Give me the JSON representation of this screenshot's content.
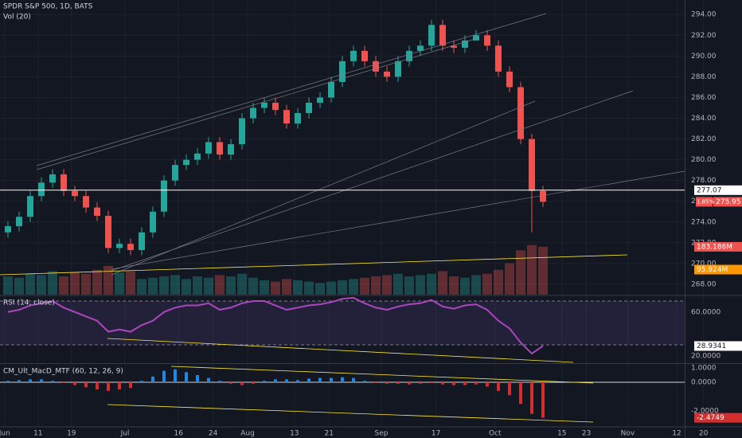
{
  "chart_data": [
    {
      "type": "candlestick",
      "title": "SPDR S&P 500, 1D, BATS",
      "subtitle": "Vol (20)",
      "open": [
        273.0,
        273.6,
        274.5,
        276.5,
        277.8,
        278.6,
        277.0,
        276.5,
        275.4,
        274.6,
        271.5,
        271.9,
        271.3,
        273.0,
        275.0,
        278.0,
        279.5,
        280.0,
        280.6,
        281.7,
        280.5,
        281.5,
        284.0,
        285.0,
        285.5,
        284.8,
        283.5,
        284.5,
        285.5,
        286.0,
        287.5,
        289.5,
        290.5,
        289.5,
        288.5,
        288.0,
        289.5,
        290.5,
        291.0,
        293.0,
        291.0,
        290.8,
        291.5,
        292.0,
        291.0,
        288.5,
        287.0,
        282.0,
        277.0
      ],
      "high": [
        274.1,
        275.0,
        277.0,
        278.3,
        279.1,
        279.1,
        277.5,
        277.0,
        275.9,
        275.1,
        272.4,
        272.4,
        273.5,
        275.5,
        278.5,
        280.0,
        280.5,
        281.1,
        282.2,
        282.2,
        282.0,
        284.5,
        285.5,
        286.0,
        286.0,
        285.3,
        285.0,
        286.0,
        286.5,
        288.0,
        290.0,
        291.0,
        291.0,
        290.0,
        289.0,
        290.0,
        291.0,
        291.5,
        293.5,
        293.5,
        291.5,
        292.0,
        292.5,
        292.5,
        291.5,
        289.0,
        287.5,
        282.5,
        277.5
      ],
      "low": [
        272.5,
        273.1,
        274.0,
        276.0,
        277.3,
        276.5,
        276.0,
        274.9,
        274.1,
        271.0,
        271.0,
        270.8,
        270.8,
        272.5,
        274.5,
        277.5,
        279.0,
        279.5,
        280.1,
        280.0,
        280.0,
        281.0,
        283.5,
        284.5,
        284.3,
        283.0,
        283.0,
        284.0,
        285.0,
        285.5,
        287.0,
        289.0,
        289.0,
        288.0,
        287.5,
        287.5,
        289.0,
        290.0,
        290.5,
        290.5,
        290.3,
        290.3,
        291.5,
        290.5,
        288.0,
        286.5,
        281.5,
        273.0,
        275.45
      ],
      "close": [
        273.6,
        274.5,
        276.5,
        277.8,
        278.6,
        277.0,
        276.5,
        275.4,
        274.6,
        271.5,
        271.9,
        271.3,
        273.0,
        275.0,
        278.0,
        279.5,
        280.0,
        280.6,
        281.7,
        280.5,
        281.5,
        284.0,
        285.0,
        285.5,
        284.8,
        283.5,
        284.5,
        285.5,
        286.0,
        287.5,
        289.5,
        290.5,
        289.5,
        288.5,
        288.0,
        289.5,
        290.5,
        291.0,
        293.0,
        291.0,
        290.8,
        291.5,
        292.0,
        291.0,
        288.5,
        287.0,
        282.0,
        277.0,
        275.95
      ],
      "volume": {
        "axis": "y2",
        "values": [
          70,
          65,
          80,
          75,
          90,
          70,
          85,
          80,
          95,
          110,
          85,
          90,
          60,
          65,
          70,
          75,
          60,
          70,
          65,
          75,
          70,
          80,
          65,
          55,
          50,
          60,
          55,
          50,
          45,
          50,
          55,
          60,
          65,
          70,
          75,
          80,
          70,
          75,
          80,
          90,
          70,
          65,
          75,
          80,
          95,
          120,
          170,
          190,
          183.186
        ]
      },
      "volume_tags": [
        {
          "value": 183.186,
          "label": "183.186M",
          "color": "#ef5350"
        },
        {
          "value": 95.924,
          "label": "95.924M",
          "color": "#ff9800"
        }
      ],
      "ylim": [
        267,
        295.4
      ],
      "y2lim": [
        0,
        1128
      ],
      "yticks": [
        {
          "value": 268,
          "label": "268.00"
        },
        {
          "value": 270,
          "label": "270.00"
        },
        {
          "value": 272,
          "label": "272.00"
        },
        {
          "value": 274,
          "label": "274.00"
        },
        {
          "value": 276,
          "label": "276.00"
        },
        {
          "value": 278,
          "label": "278.00"
        },
        {
          "value": 280,
          "label": "280.00"
        },
        {
          "value": 282,
          "label": "282.00"
        },
        {
          "value": 284,
          "label": "284.00"
        },
        {
          "value": 286,
          "label": "286.00"
        },
        {
          "value": 288,
          "label": "288.00"
        },
        {
          "value": 290,
          "label": "290.00"
        },
        {
          "value": 292,
          "label": "292.00"
        },
        {
          "value": 294,
          "label": "294.00"
        }
      ],
      "hline": 277.07,
      "change_label": "1.85%",
      "xticks": [
        {
          "value": -0.3,
          "label": "Jun"
        },
        {
          "value": 2.7,
          "label": "11"
        },
        {
          "value": 5.7,
          "label": "19"
        },
        {
          "value": 10.5,
          "label": "Jul"
        },
        {
          "value": 15.3,
          "label": "16"
        },
        {
          "value": 18.4,
          "label": "24"
        },
        {
          "value": 21.5,
          "label": "Aug"
        },
        {
          "value": 25.7,
          "label": "13"
        },
        {
          "value": 28.8,
          "label": "21"
        },
        {
          "value": 33.5,
          "label": "Sep"
        },
        {
          "value": 38.4,
          "label": "17"
        },
        {
          "value": 43.7,
          "label": "Oct"
        },
        {
          "value": 49.7,
          "label": "15"
        },
        {
          "value": 51.9,
          "label": "23"
        },
        {
          "value": 55.6,
          "label": "Nov"
        },
        {
          "value": 60,
          "label": "12"
        },
        {
          "value": 62.4,
          "label": "20"
        }
      ],
      "grid": true,
      "up_color": "#26a69a",
      "down_color": "#ef5350"
    },
    {
      "type": "line",
      "title": "RSI (14, close)",
      "color": "#ab47bc",
      "values": [
        60,
        62,
        66,
        68,
        70,
        64,
        60,
        56,
        52,
        42,
        44,
        42,
        48,
        52,
        60,
        64,
        66,
        66,
        68,
        62,
        64,
        68,
        70,
        70,
        66,
        62,
        64,
        66,
        67,
        69,
        72,
        73,
        68,
        64,
        62,
        65,
        67,
        68,
        71,
        65,
        63,
        66,
        67,
        62,
        52,
        45,
        32,
        22,
        28.9341
      ],
      "ylim": [
        14,
        74.4
      ],
      "yticks": [
        {
          "value": 60,
          "label": "60.0000"
        },
        {
          "value": 20,
          "label": "20.0000"
        }
      ],
      "levels": [
        70,
        30
      ]
    },
    {
      "type": "bar",
      "title": "CM_Ult_MacD_MTF (60, 12, 26, 9)",
      "up_color": "#1e88e5",
      "down_color": "#d32f2f",
      "values": [
        0.1,
        0.15,
        0.2,
        0.2,
        0.1,
        -0.05,
        -0.2,
        -0.35,
        -0.5,
        -0.6,
        -0.5,
        -0.4,
        0.1,
        0.4,
        0.8,
        0.9,
        0.7,
        0.5,
        0.3,
        0.1,
        -0.1,
        -0.2,
        -0.1,
        0.1,
        0.2,
        0.2,
        0.15,
        0.25,
        0.3,
        0.3,
        0.35,
        0.3,
        0.1,
        -0.05,
        -0.1,
        -0.1,
        -0.15,
        -0.1,
        -0.05,
        -0.15,
        -0.2,
        -0.2,
        -0.15,
        -0.3,
        -0.6,
        -0.9,
        -1.5,
        -2.2,
        -2.4749
      ],
      "ylim": [
        -3.05,
        1.22
      ],
      "yticks": [
        {
          "value": 1,
          "label": "1.0000"
        },
        {
          "value": 0,
          "label": "0.0000"
        },
        {
          "value": -2,
          "label": "-2.0000"
        }
      ]
    }
  ]
}
